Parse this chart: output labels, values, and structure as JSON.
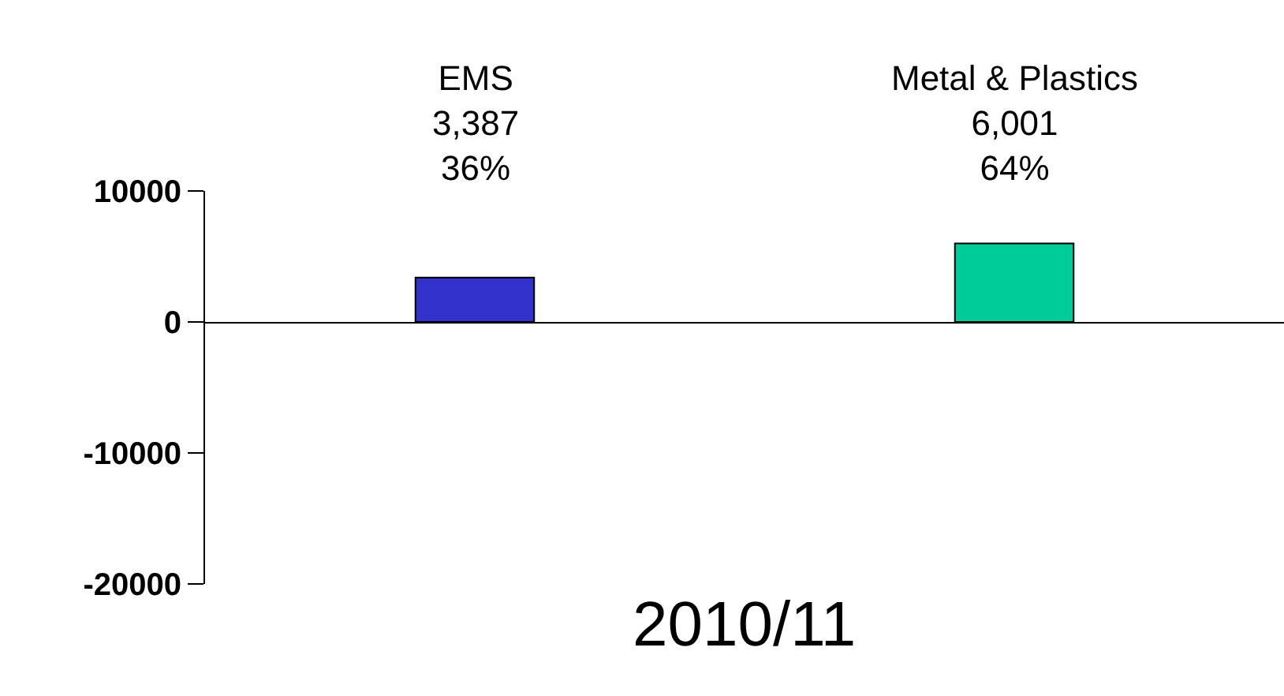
{
  "chart_data": {
    "type": "bar",
    "xlabel": "2010/11",
    "categories": [
      "EMS",
      "Metal & Plastics"
    ],
    "values": [
      3387,
      6001
    ],
    "colors": [
      "#3333cc",
      "#00cc99"
    ],
    "value_labels": [
      "3,387\n36%",
      "6,001\n64%"
    ],
    "ylim": [
      -20000,
      10000
    ],
    "yticks": [
      -20000,
      -10000,
      0,
      10000
    ]
  }
}
